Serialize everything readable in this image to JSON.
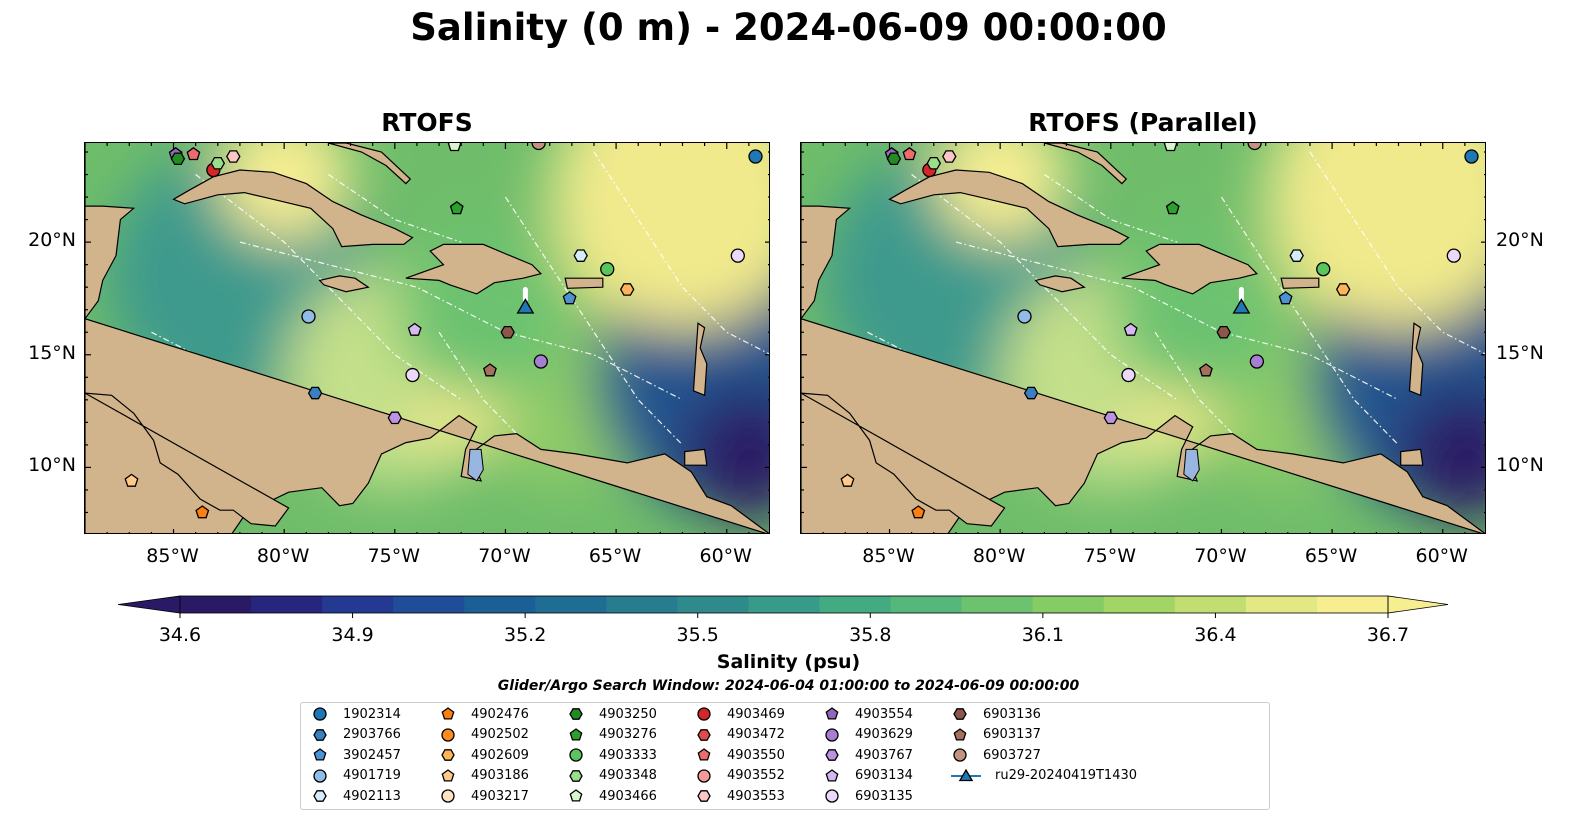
{
  "title": "Salinity (0 m) - 2024-06-09 00:00:00",
  "panels": [
    {
      "title": "RTOFS"
    },
    {
      "title": "RTOFS (Parallel)"
    }
  ],
  "map": {
    "lon_range": [
      -89,
      -58
    ],
    "lat_range": [
      7,
      24.4
    ],
    "lon_ticks": [
      {
        "value": -85,
        "label": "85°W"
      },
      {
        "value": -80,
        "label": "80°W"
      },
      {
        "value": -75,
        "label": "75°W"
      },
      {
        "value": -70,
        "label": "70°W"
      },
      {
        "value": -65,
        "label": "65°W"
      },
      {
        "value": -60,
        "label": "60°W"
      }
    ],
    "lat_ticks": [
      {
        "value": 20,
        "label": "20°N"
      },
      {
        "value": 15,
        "label": "15°N"
      },
      {
        "value": 10,
        "label": "10°N"
      }
    ],
    "colors": {
      "land": "#d2b48c",
      "lake": "#98b6e0",
      "ocean_mid": "#6fbd6a"
    }
  },
  "colorbar": {
    "min": 34.6,
    "max": 36.7,
    "ticks": [
      "34.6",
      "34.9",
      "35.2",
      "35.5",
      "35.8",
      "36.1",
      "36.4",
      "36.7"
    ],
    "label": "Salinity (psu)",
    "colors": [
      "#2a1a66",
      "#27267f",
      "#243a92",
      "#1f4d98",
      "#1b5f97",
      "#1f6d93",
      "#277c8f",
      "#2f8a8c",
      "#389a88",
      "#44aa82",
      "#56b77a",
      "#6cc26f",
      "#86cc64",
      "#a3d566",
      "#c2de73",
      "#e2e884",
      "#f7ee92"
    ]
  },
  "search_window": "Glider/Argo Search Window: 2024-06-04 01:00:00 to 2024-06-09 00:00:00",
  "legend": [
    {
      "label": "1902314",
      "color": "#1f77b4",
      "marker": "circle"
    },
    {
      "label": "2903766",
      "color": "#3a7fbf",
      "marker": "hexagon"
    },
    {
      "label": "3902457",
      "color": "#4a92d4",
      "marker": "pentagon"
    },
    {
      "label": "4901719",
      "color": "#8fbde8",
      "marker": "circle"
    },
    {
      "label": "4902113",
      "color": "#d6ecfb",
      "marker": "hexagon"
    },
    {
      "label": "4902476",
      "color": "#ff7f0e",
      "marker": "pentagon"
    },
    {
      "label": "4902502",
      "color": "#ff8c1a",
      "marker": "circle"
    },
    {
      "label": "4902609",
      "color": "#ffb35a",
      "marker": "hexagon"
    },
    {
      "label": "4903186",
      "color": "#ffc98a",
      "marker": "pentagon"
    },
    {
      "label": "4903217",
      "color": "#ffe2c2",
      "marker": "circle"
    },
    {
      "label": "4903250",
      "color": "#228b22",
      "marker": "hexagon"
    },
    {
      "label": "4903276",
      "color": "#2ca02c",
      "marker": "pentagon"
    },
    {
      "label": "4903333",
      "color": "#5cc45c",
      "marker": "circle"
    },
    {
      "label": "4903348",
      "color": "#98df8a",
      "marker": "hexagon"
    },
    {
      "label": "4903466",
      "color": "#d8f5d0",
      "marker": "pentagon"
    },
    {
      "label": "4903469",
      "color": "#d62728",
      "marker": "circle"
    },
    {
      "label": "4903472",
      "color": "#e34a4a",
      "marker": "hexagon"
    },
    {
      "label": "4903550",
      "color": "#ee6b6b",
      "marker": "pentagon"
    },
    {
      "label": "4903552",
      "color": "#f59a9a",
      "marker": "circle"
    },
    {
      "label": "4903553",
      "color": "#fbc6c6",
      "marker": "hexagon"
    },
    {
      "label": "4903554",
      "color": "#9467bd",
      "marker": "pentagon"
    },
    {
      "label": "4903629",
      "color": "#a67fd2",
      "marker": "circle"
    },
    {
      "label": "4903767",
      "color": "#bb93e2",
      "marker": "hexagon"
    },
    {
      "label": "6903134",
      "color": "#d5b8f0",
      "marker": "pentagon"
    },
    {
      "label": "6903135",
      "color": "#ecd8fa",
      "marker": "circle"
    },
    {
      "label": "6903136",
      "color": "#8c564b",
      "marker": "hexagon"
    },
    {
      "label": "6903137",
      "color": "#a6705f",
      "marker": "pentagon"
    },
    {
      "label": "6903727",
      "color": "#c4937f",
      "marker": "circle"
    },
    {
      "label": "ru29-20240419T1430",
      "color": "#1f77b4",
      "marker": "triangle"
    }
  ],
  "floats": [
    {
      "id": "1902314",
      "lon": -58.7,
      "lat": 23.8
    },
    {
      "id": "6903135",
      "lon": -59.5,
      "lat": 19.4
    },
    {
      "id": "4903333",
      "lon": -65.4,
      "lat": 18.8
    },
    {
      "id": "4902113",
      "lon": -66.6,
      "lat": 19.4
    },
    {
      "id": "4902609",
      "lon": -64.5,
      "lat": 17.9
    },
    {
      "id": "3902457",
      "lon": -67.1,
      "lat": 17.5
    },
    {
      "id": "6903136",
      "lon": -69.9,
      "lat": 16.0
    },
    {
      "id": "4903629",
      "lon": -68.4,
      "lat": 14.7
    },
    {
      "id": "6903137",
      "lon": -70.7,
      "lat": 14.3
    },
    {
      "id": "6903134",
      "lon": -74.1,
      "lat": 16.1
    },
    {
      "id": "6903135",
      "lon": -74.2,
      "lat": 14.1
    },
    {
      "id": "4901719",
      "lon": -78.9,
      "lat": 16.7
    },
    {
      "id": "2903766",
      "lon": -78.6,
      "lat": 13.3
    },
    {
      "id": "4903767",
      "lon": -75.0,
      "lat": 12.2
    },
    {
      "id": "4903186",
      "lon": -86.9,
      "lat": 9.4
    },
    {
      "id": "4902476",
      "lon": -83.7,
      "lat": 8.0
    },
    {
      "id": "4903554",
      "lon": -84.9,
      "lat": 23.9
    },
    {
      "id": "4903250",
      "lon": -84.8,
      "lat": 23.7
    },
    {
      "id": "4903550",
      "lon": -84.1,
      "lat": 23.9
    },
    {
      "id": "4903469",
      "lon": -83.2,
      "lat": 23.2
    },
    {
      "id": "4903348",
      "lon": -83.0,
      "lat": 23.5
    },
    {
      "id": "4903553",
      "lon": -82.3,
      "lat": 23.8
    },
    {
      "id": "4903276",
      "lon": -72.2,
      "lat": 21.5
    },
    {
      "id": "4903466",
      "lon": -72.3,
      "lat": 24.3
    },
    {
      "id": "6903727",
      "lon": -68.5,
      "lat": 24.4
    }
  ],
  "glider": {
    "id": "ru29-20240419T1430",
    "lon": -69.1,
    "lat": 17.1
  }
}
